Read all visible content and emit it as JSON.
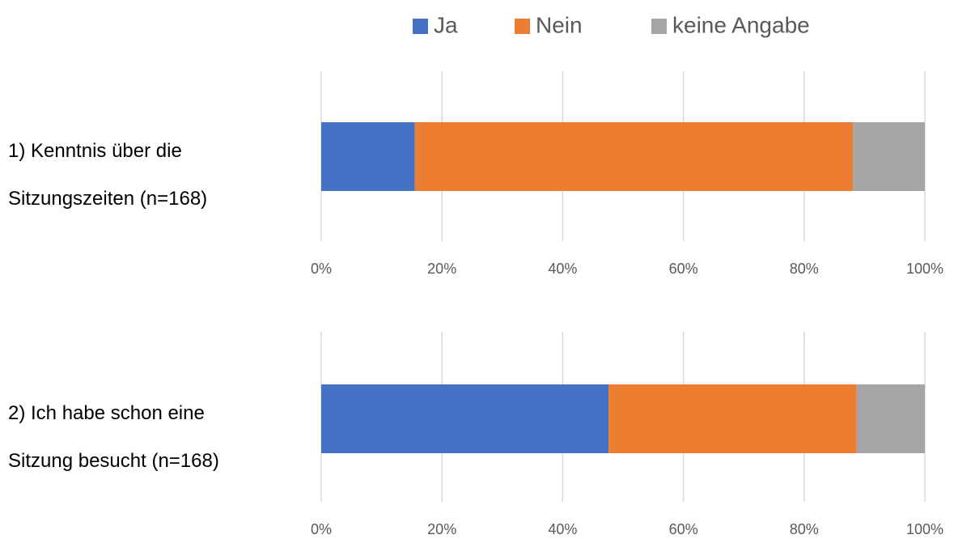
{
  "chart_data": {
    "type": "bar",
    "orientation": "horizontal",
    "stacked": true,
    "categories": [
      "1) Kenntnis über die\nSitzungszeiten (n=168)",
      "2) Ich habe schon eine\nSitzung besucht (n=168)"
    ],
    "series": [
      {
        "name": "Ja",
        "color": "#4472c4",
        "values": [
          15.5,
          47.6
        ]
      },
      {
        "name": "Nein",
        "color": "#ed7d31",
        "values": [
          72.6,
          41.1
        ]
      },
      {
        "name": "keine Angabe",
        "color": "#a5a5a5",
        "values": [
          11.9,
          11.3
        ]
      }
    ],
    "xlim": [
      0,
      100
    ],
    "xticks": [
      {
        "value": 0,
        "label": "0%"
      },
      {
        "value": 20,
        "label": "20%"
      },
      {
        "value": 40,
        "label": "40%"
      },
      {
        "value": 60,
        "label": "60%"
      },
      {
        "value": 80,
        "label": "80%"
      },
      {
        "value": 100,
        "label": "100%"
      }
    ],
    "grid": true,
    "legend": "top"
  }
}
